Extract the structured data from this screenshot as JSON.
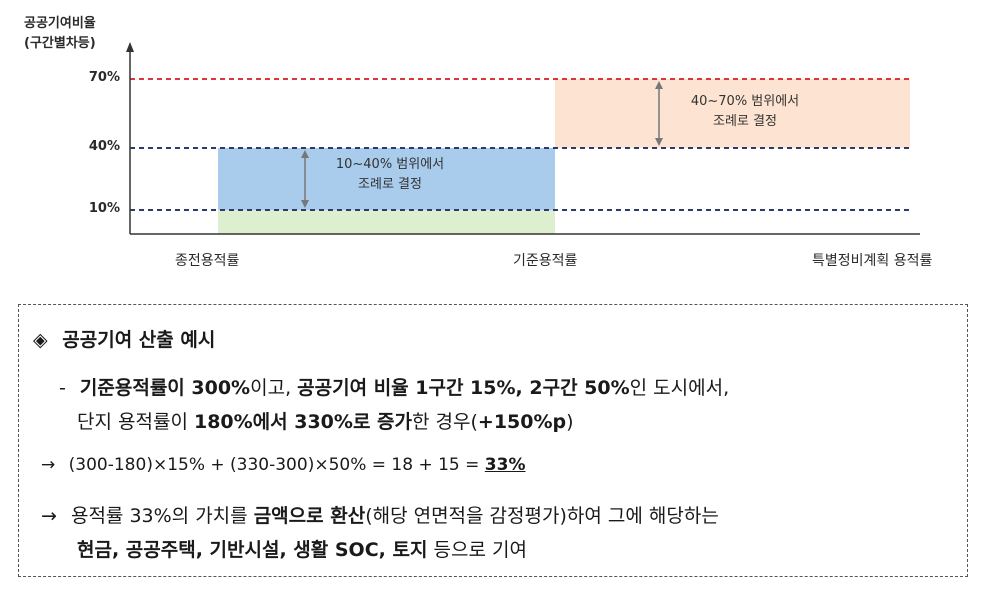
{
  "diagram": {
    "y_axis_label_line1": "공공기여비율",
    "y_axis_label_line2": "(구간별차등)",
    "ticks": [
      "70%",
      "40%",
      "10%"
    ],
    "categories": [
      "종전용적률",
      "기준용적률",
      "특별정비계획 용적률"
    ],
    "notes": {
      "lower_line1": "10~40% 범위에서",
      "lower_line2": "조례로 결정",
      "upper_line1": "40~70% 범위에서",
      "upper_line2": "조례로 결정"
    },
    "colors": {
      "red_dashed": "#d9363e",
      "navy_dashed": "#2e3a6b",
      "blue_fill": "#a9cbec",
      "green_fill": "#ddefcf",
      "peach_fill": "#fde4d2",
      "arrow": "#777777"
    }
  },
  "example": {
    "title_icon": "◈",
    "title": "공공기여 산출 예시",
    "b1_dash": "-",
    "b1_s1": "기준용적률이 300%",
    "b1_s2": "이고, ",
    "b1_s3": "공공기여 비율 1구간 15%, 2구간 50%",
    "b1_s4": "인 도시에서,",
    "b2_s1": "단지 용적률이 ",
    "b2_s2": "180%에서 330%로 증가",
    "b2_s3": "한 경우(",
    "b2_s4": "+150%p",
    "b2_s5": ")",
    "arrow": "→",
    "calc_prefix": "(300-180)×15% + (330-300)×50% = 18 + 15 = ",
    "calc_result": "33%",
    "b4_s1": "용적률 33%의 가치를 ",
    "b4_s2": "금액으로 환산",
    "b4_s3": "(해당 연면적을 감정평가)하여 그에 해당하는",
    "b5_s1": "현금, 공공주택, 기반시설, 생활 SOC, 토지",
    "b5_s2": " 등으로 기여"
  }
}
